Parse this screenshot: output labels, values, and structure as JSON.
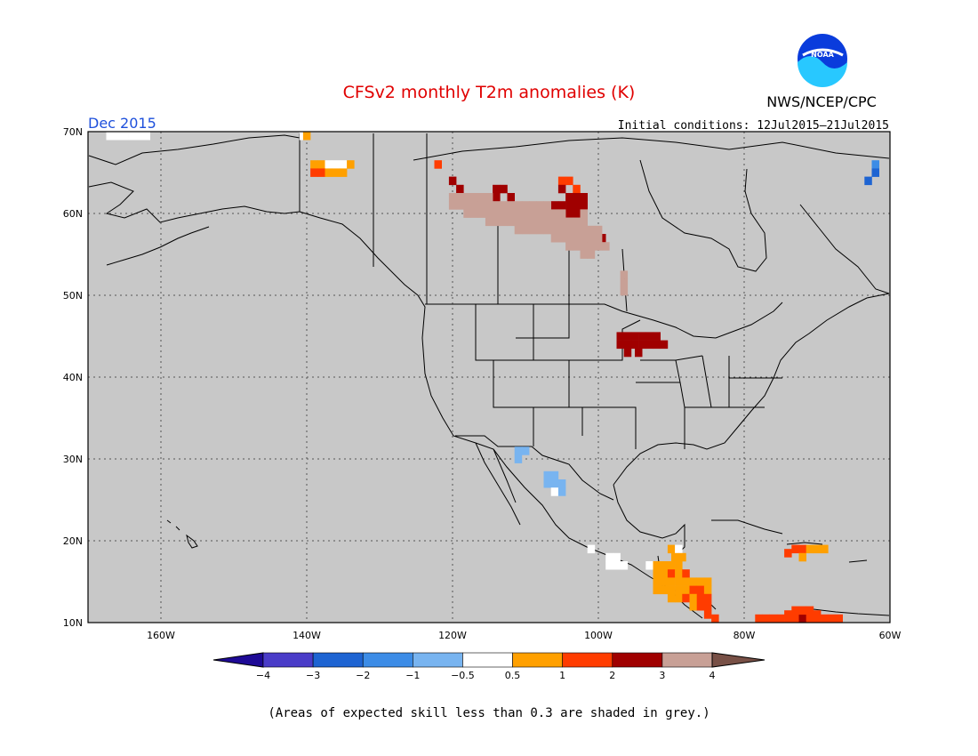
{
  "header": {
    "title": "CFSv2 monthly T2m anomalies (K)",
    "month": "Dec 2015",
    "agency": "NWS/NCEP/CPC",
    "initial_conditions": "Initial conditions: 12Jul2015–21Jul2015",
    "logo_text": "NOAA"
  },
  "map": {
    "lat_labels": [
      "70N",
      "60N",
      "50N",
      "40N",
      "30N",
      "20N",
      "10N"
    ],
    "lat_values": [
      70,
      60,
      50,
      40,
      30,
      20,
      10
    ],
    "lon_labels": [
      "160W",
      "140W",
      "120W",
      "100W",
      "80W",
      "60W"
    ],
    "lon_values": [
      -160,
      -140,
      -120,
      -100,
      -80,
      -60
    ],
    "extent": {
      "lon_min": -170,
      "lon_max": -60,
      "lat_min": 10,
      "lat_max": 70
    },
    "background_color": "#c8c8c8",
    "grid": "dotted"
  },
  "colorbar": {
    "tick_labels": [
      "−4",
      "−3",
      "−2",
      "−1",
      "−0.5",
      "0.5",
      "1",
      "2",
      "3",
      "4"
    ],
    "colors": [
      "#1e0a96",
      "#4a3cc8",
      "#1e64d2",
      "#3c8ce6",
      "#78b4f0",
      "#ffffff",
      "#ffa000",
      "#ff3c00",
      "#a00000",
      "#c8a096",
      "#785046"
    ],
    "caption": "(Areas of expected skill less than 0.3 are shaded in grey.)"
  },
  "chart_data": {
    "type": "heatmap",
    "title": "CFSv2 monthly T2m anomalies (K)",
    "subtitle": "Dec 2015",
    "units": "K",
    "bins": [
      {
        "range": "<-4",
        "color": "#1e0a96"
      },
      {
        "range": "-4 to -3",
        "color": "#4a3cc8"
      },
      {
        "range": "-3 to -2",
        "color": "#1e64d2"
      },
      {
        "range": "-2 to -1",
        "color": "#3c8ce6"
      },
      {
        "range": "-1 to -0.5",
        "color": "#78b4f0"
      },
      {
        "range": "-0.5 to 0.5",
        "color": "#ffffff"
      },
      {
        "range": "0.5 to 1",
        "color": "#ffa000"
      },
      {
        "range": "1 to 2",
        "color": "#ff3c00"
      },
      {
        "range": "2 to 3",
        "color": "#a00000"
      },
      {
        "range": "3 to 4",
        "color": "#c8a096"
      },
      {
        "range": ">4",
        "color": "#785046"
      }
    ],
    "anomaly_regions": [
      {
        "region": "Northern Alaska coast",
        "bin": "-0.5 to 0.5"
      },
      {
        "region": "Northeast Alaska",
        "bin": "0.5 to 1"
      },
      {
        "region": "Northwest Territories / Great Slave Lake",
        "bin": "3 to 4"
      },
      {
        "region": "Northern Canada lakes",
        "bin": "2 to 3"
      },
      {
        "region": "Minnesota / Lake Superior",
        "bin": "2 to 3"
      },
      {
        "region": "Northern Mexico",
        "bin": "-1 to -0.5"
      },
      {
        "region": "Central America",
        "bin": "0.5 to 1"
      },
      {
        "region": "Caribbean / Hispaniola",
        "bin": "1 to 2"
      },
      {
        "region": "Northern South America",
        "bin": "1 to 2"
      }
    ]
  }
}
